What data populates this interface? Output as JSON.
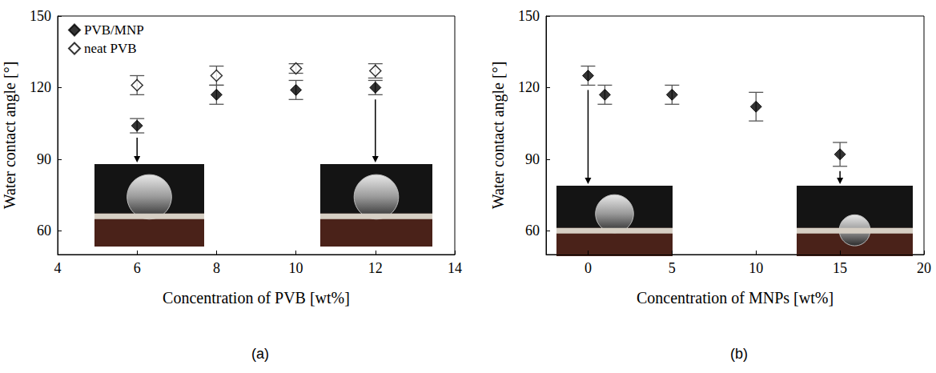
{
  "chart_data": [
    {
      "type": "scatter",
      "title": "(a)",
      "x_label": "Concentration of PVB [wt%]",
      "y_label": "Water contact angle [°]",
      "xlim": [
        4,
        14
      ],
      "xticks": [
        4,
        6,
        8,
        10,
        12,
        14
      ],
      "ylim": [
        50,
        150
      ],
      "yticks": [
        60,
        90,
        120,
        150
      ],
      "grid": false,
      "legend": "upper left",
      "series": [
        {
          "name": "PVB/MNP",
          "color": "#000000",
          "marker": "diamond",
          "x": [
            6,
            8,
            10,
            12
          ],
          "values": [
            104,
            117,
            119,
            120
          ],
          "errors": [
            3,
            4,
            4,
            3
          ]
        },
        {
          "name": "neat PVB",
          "color": "#000000",
          "marker": "diamond_open",
          "x": [
            6,
            8,
            10,
            12
          ],
          "values": [
            121,
            125,
            128,
            127
          ],
          "errors": [
            4,
            4,
            2,
            3
          ]
        }
      ]
    },
    {
      "type": "scatter",
      "title": "(b)",
      "x_label": "Concentration of MNPs [wt%]",
      "y_label": "Water contact angle [°]",
      "xlim": [
        -2.5,
        20
      ],
      "xticks": [
        0,
        5,
        10,
        15,
        20
      ],
      "ylim": [
        50,
        150
      ],
      "yticks": [
        60,
        90,
        120,
        150
      ],
      "grid": false,
      "series": [
        {
          "color": "#000000",
          "marker": "diamond",
          "x": [
            0,
            1,
            5,
            10,
            15
          ],
          "values": [
            125,
            117,
            117,
            112,
            92
          ],
          "errors": [
            4,
            4,
            4,
            6,
            5
          ]
        }
      ]
    }
  ]
}
